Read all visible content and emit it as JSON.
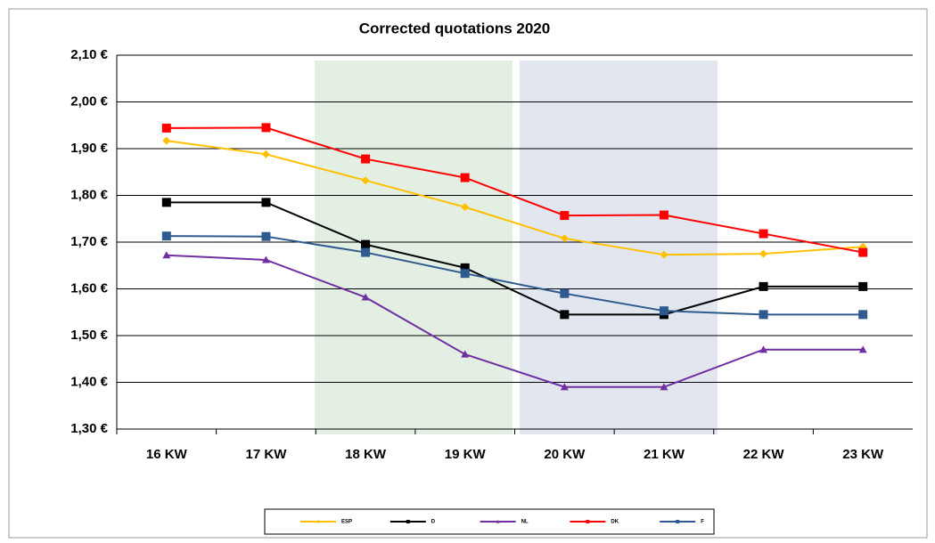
{
  "chart_data": {
    "type": "line",
    "title": "Corrected quotations 2020",
    "categories": [
      "16 KW",
      "17 KW",
      "18 KW",
      "19 KW",
      "20 KW",
      "21 KW",
      "22 KW",
      "23 KW"
    ],
    "ylim": [
      1.3,
      2.1
    ],
    "yticks": [
      {
        "value": 1.3,
        "label": "1,30 €"
      },
      {
        "value": 1.4,
        "label": "1,40 €"
      },
      {
        "value": 1.5,
        "label": "1,50 €"
      },
      {
        "value": 1.6,
        "label": "1,60 €"
      },
      {
        "value": 1.7,
        "label": "1,70 €"
      },
      {
        "value": 1.8,
        "label": "1,80 €"
      },
      {
        "value": 1.9,
        "label": "1,90 €"
      },
      {
        "value": 2.0,
        "label": "2,00 €"
      },
      {
        "value": 2.1,
        "label": "2,10 €"
      }
    ],
    "grid": true,
    "legend": "bottom",
    "series": [
      {
        "name": "ESP",
        "color": "#ffc000",
        "marker": "diamond",
        "values": [
          1.917,
          1.888,
          1.832,
          1.775,
          1.708,
          1.673,
          1.675,
          1.69
        ]
      },
      {
        "name": "D",
        "color": "#000000",
        "marker": "square",
        "values": [
          1.785,
          1.785,
          1.695,
          1.645,
          1.545,
          1.545,
          1.605,
          1.605
        ]
      },
      {
        "name": "NL",
        "color": "#7030a0",
        "marker": "triangle",
        "values": [
          1.672,
          1.662,
          1.582,
          1.46,
          1.39,
          1.39,
          1.47,
          1.47
        ]
      },
      {
        "name": "DK",
        "color": "#ff0000",
        "marker": "square",
        "values": [
          1.944,
          1.945,
          1.878,
          1.838,
          1.757,
          1.758,
          1.718,
          1.678
        ]
      },
      {
        "name": "F",
        "color": "#2e5a8f",
        "marker": "square",
        "values": [
          1.713,
          1.712,
          1.678,
          1.633,
          1.59,
          1.553,
          1.545,
          1.545
        ]
      }
    ]
  }
}
